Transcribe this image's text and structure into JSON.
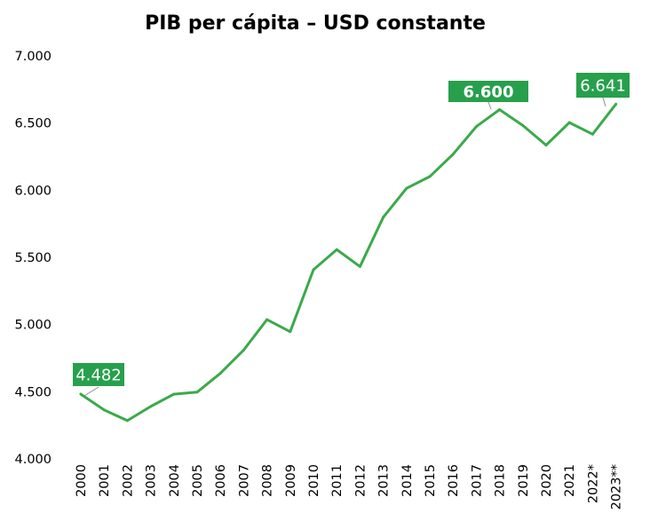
{
  "chart_data": {
    "type": "line",
    "title": "PIB per cápita – USD constante",
    "xlabel": "",
    "ylabel": "",
    "ylim": [
      4000,
      7000
    ],
    "y_ticks": [
      {
        "value": 4000,
        "label": "4.000"
      },
      {
        "value": 4500,
        "label": "4.500"
      },
      {
        "value": 5000,
        "label": "5.000"
      },
      {
        "value": 5500,
        "label": "5.500"
      },
      {
        "value": 6000,
        "label": "6.000"
      },
      {
        "value": 6500,
        "label": "6.500"
      },
      {
        "value": 7000,
        "label": "7.000"
      }
    ],
    "grid": false,
    "categories": [
      "2000",
      "2001",
      "2002",
      "2003",
      "2004",
      "2005",
      "2006",
      "2007",
      "2008",
      "2009",
      "2010",
      "2011",
      "2012",
      "2013",
      "2014",
      "2015",
      "2016",
      "2017",
      "2018",
      "2019",
      "2020",
      "2021",
      "2022*",
      "2023**"
    ],
    "series": [
      {
        "name": "PIB per cápita",
        "color": "#3aaa4a",
        "values": [
          4482,
          4365,
          4285,
          4390,
          4482,
          4497,
          4637,
          4810,
          5037,
          4947,
          5408,
          5558,
          5432,
          5799,
          6014,
          6102,
          6268,
          6474,
          6600,
          6482,
          6336,
          6504,
          6417,
          6641
        ]
      }
    ],
    "annotations": [
      {
        "index": 0,
        "label": "4.482",
        "bold": false
      },
      {
        "index": 18,
        "label": "6.600",
        "bold": true
      },
      {
        "index": 23,
        "label": "6.641",
        "bold": false
      }
    ],
    "label_color": "#27a04c"
  }
}
